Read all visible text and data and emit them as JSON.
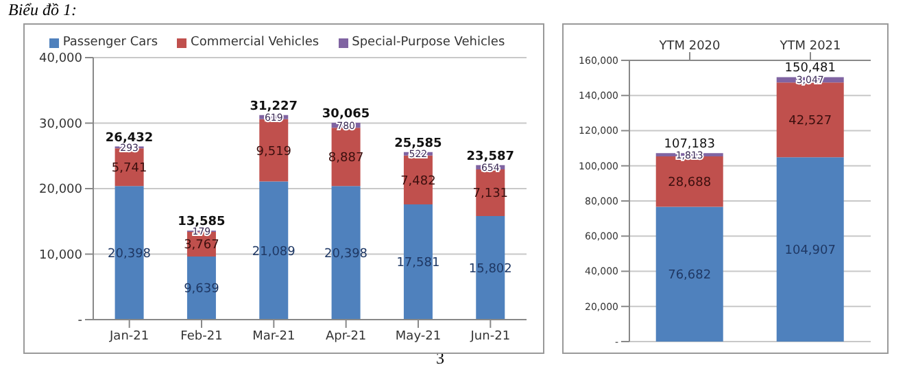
{
  "chart_data": [
    {
      "type": "bar",
      "title": "Biểu đồ 1:",
      "annotations": [
        "3"
      ],
      "categories": [
        "Jan-21",
        "Feb-21",
        "Mar-21",
        "Apr-21",
        "May-21",
        "Jun-21"
      ],
      "stacked": true,
      "series": [
        {
          "name": "Passenger Cars",
          "color": "#4f81bd",
          "values": [
            20398,
            9639,
            21089,
            20398,
            17581,
            15802
          ],
          "value_labels": [
            "20,398",
            "9,639",
            "21,089",
            "20,398",
            "17,581",
            "15,802"
          ]
        },
        {
          "name": "Commercial Vehicles",
          "color": "#c0504d",
          "values": [
            5741,
            3767,
            9519,
            8887,
            7482,
            7131
          ],
          "value_labels": [
            "5,741",
            "3,767",
            "9,519",
            "8,887",
            "7,482",
            "7,131"
          ]
        },
        {
          "name": "Special-Purpose Vehicles",
          "color": "#8064a2",
          "values": [
            293,
            179,
            619,
            780,
            522,
            654
          ],
          "value_labels": [
            "293",
            "179",
            "619",
            "780",
            "522",
            "654"
          ]
        }
      ],
      "totals": [
        "26,432",
        "13,585",
        "31,227",
        "30,065",
        "25,585",
        "23,587"
      ],
      "ylim": [
        0,
        40000
      ],
      "yticks": [
        {
          "value": 0,
          "label": "-"
        },
        {
          "value": 10000,
          "label": "10,000"
        },
        {
          "value": 20000,
          "label": "20,000"
        },
        {
          "value": 30000,
          "label": "30,000"
        },
        {
          "value": 40000,
          "label": "40,000"
        }
      ],
      "grid": "y",
      "legend": "top"
    },
    {
      "type": "bar",
      "categories": [
        "YTM 2020",
        "YTM 2021"
      ],
      "stacked": true,
      "series": [
        {
          "color": "#4f81bd",
          "values": [
            76682,
            104907
          ],
          "value_labels": [
            "76,682",
            "104,907"
          ]
        },
        {
          "color": "#c0504d",
          "values": [
            28688,
            42527
          ],
          "value_labels": [
            "28,688",
            "42,527"
          ]
        },
        {
          "color": "#8064a2",
          "values": [
            1813,
            3047
          ],
          "value_labels": [
            "1,813",
            "3,047"
          ]
        }
      ],
      "totals": [
        "107,183",
        "150,481"
      ],
      "ylim": [
        0,
        160000
      ],
      "yticks": [
        {
          "value": 0,
          "label": "-"
        },
        {
          "value": 20000,
          "label": "20,000"
        },
        {
          "value": 40000,
          "label": "40,000"
        },
        {
          "value": 60000,
          "label": "60,000"
        },
        {
          "value": 80000,
          "label": "80,000"
        },
        {
          "value": 100000,
          "label": "100,000"
        },
        {
          "value": 120000,
          "label": "120,000"
        },
        {
          "value": 140000,
          "label": "140,000"
        },
        {
          "value": 160000,
          "label": "160,000"
        }
      ],
      "grid": "y"
    }
  ]
}
